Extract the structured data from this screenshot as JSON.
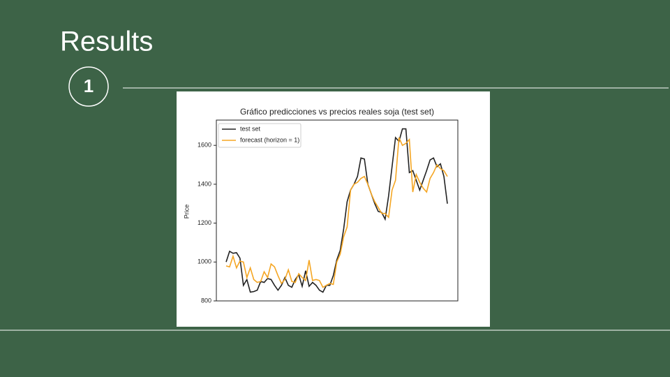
{
  "slide": {
    "title": "Results",
    "number": "1"
  },
  "chart_data": {
    "type": "line",
    "title": "Gráfico predicciones vs precios reales soja (test set)",
    "ylabel": "Price",
    "ylim": [
      800,
      1730
    ],
    "yticks": [
      800,
      1000,
      1200,
      1400,
      1600
    ],
    "legend": "upper left",
    "series": [
      {
        "name": "test set",
        "color": "#222222",
        "values": [
          1000,
          1055,
          1045,
          1048,
          1020,
          880,
          910,
          845,
          848,
          855,
          900,
          895,
          915,
          910,
          880,
          855,
          880,
          920,
          880,
          870,
          910,
          935,
          875,
          955,
          875,
          895,
          880,
          855,
          845,
          880,
          880,
          930,
          1010,
          1060,
          1170,
          1310,
          1370,
          1400,
          1440,
          1535,
          1530,
          1400,
          1350,
          1300,
          1260,
          1255,
          1220,
          1340,
          1490,
          1640,
          1620,
          1685,
          1685,
          1460,
          1470,
          1420,
          1370,
          1420,
          1470,
          1525,
          1535,
          1490,
          1505,
          1440,
          1300
        ]
      },
      {
        "name": "forecast (horizon = 1)",
        "color": "#f5a623",
        "values": [
          980,
          975,
          1030,
          970,
          1005,
          1000,
          920,
          970,
          910,
          895,
          900,
          950,
          920,
          990,
          975,
          930,
          890,
          910,
          960,
          900,
          895,
          940,
          920,
          905,
          1010,
          905,
          910,
          905,
          870,
          880,
          890,
          885,
          1000,
          1040,
          1130,
          1180,
          1370,
          1400,
          1410,
          1430,
          1440,
          1400,
          1350,
          1310,
          1280,
          1250,
          1250,
          1230,
          1370,
          1420,
          1640,
          1600,
          1610,
          1630,
          1360,
          1450,
          1410,
          1380,
          1360,
          1430,
          1460,
          1500,
          1480,
          1470,
          1440
        ]
      }
    ]
  }
}
